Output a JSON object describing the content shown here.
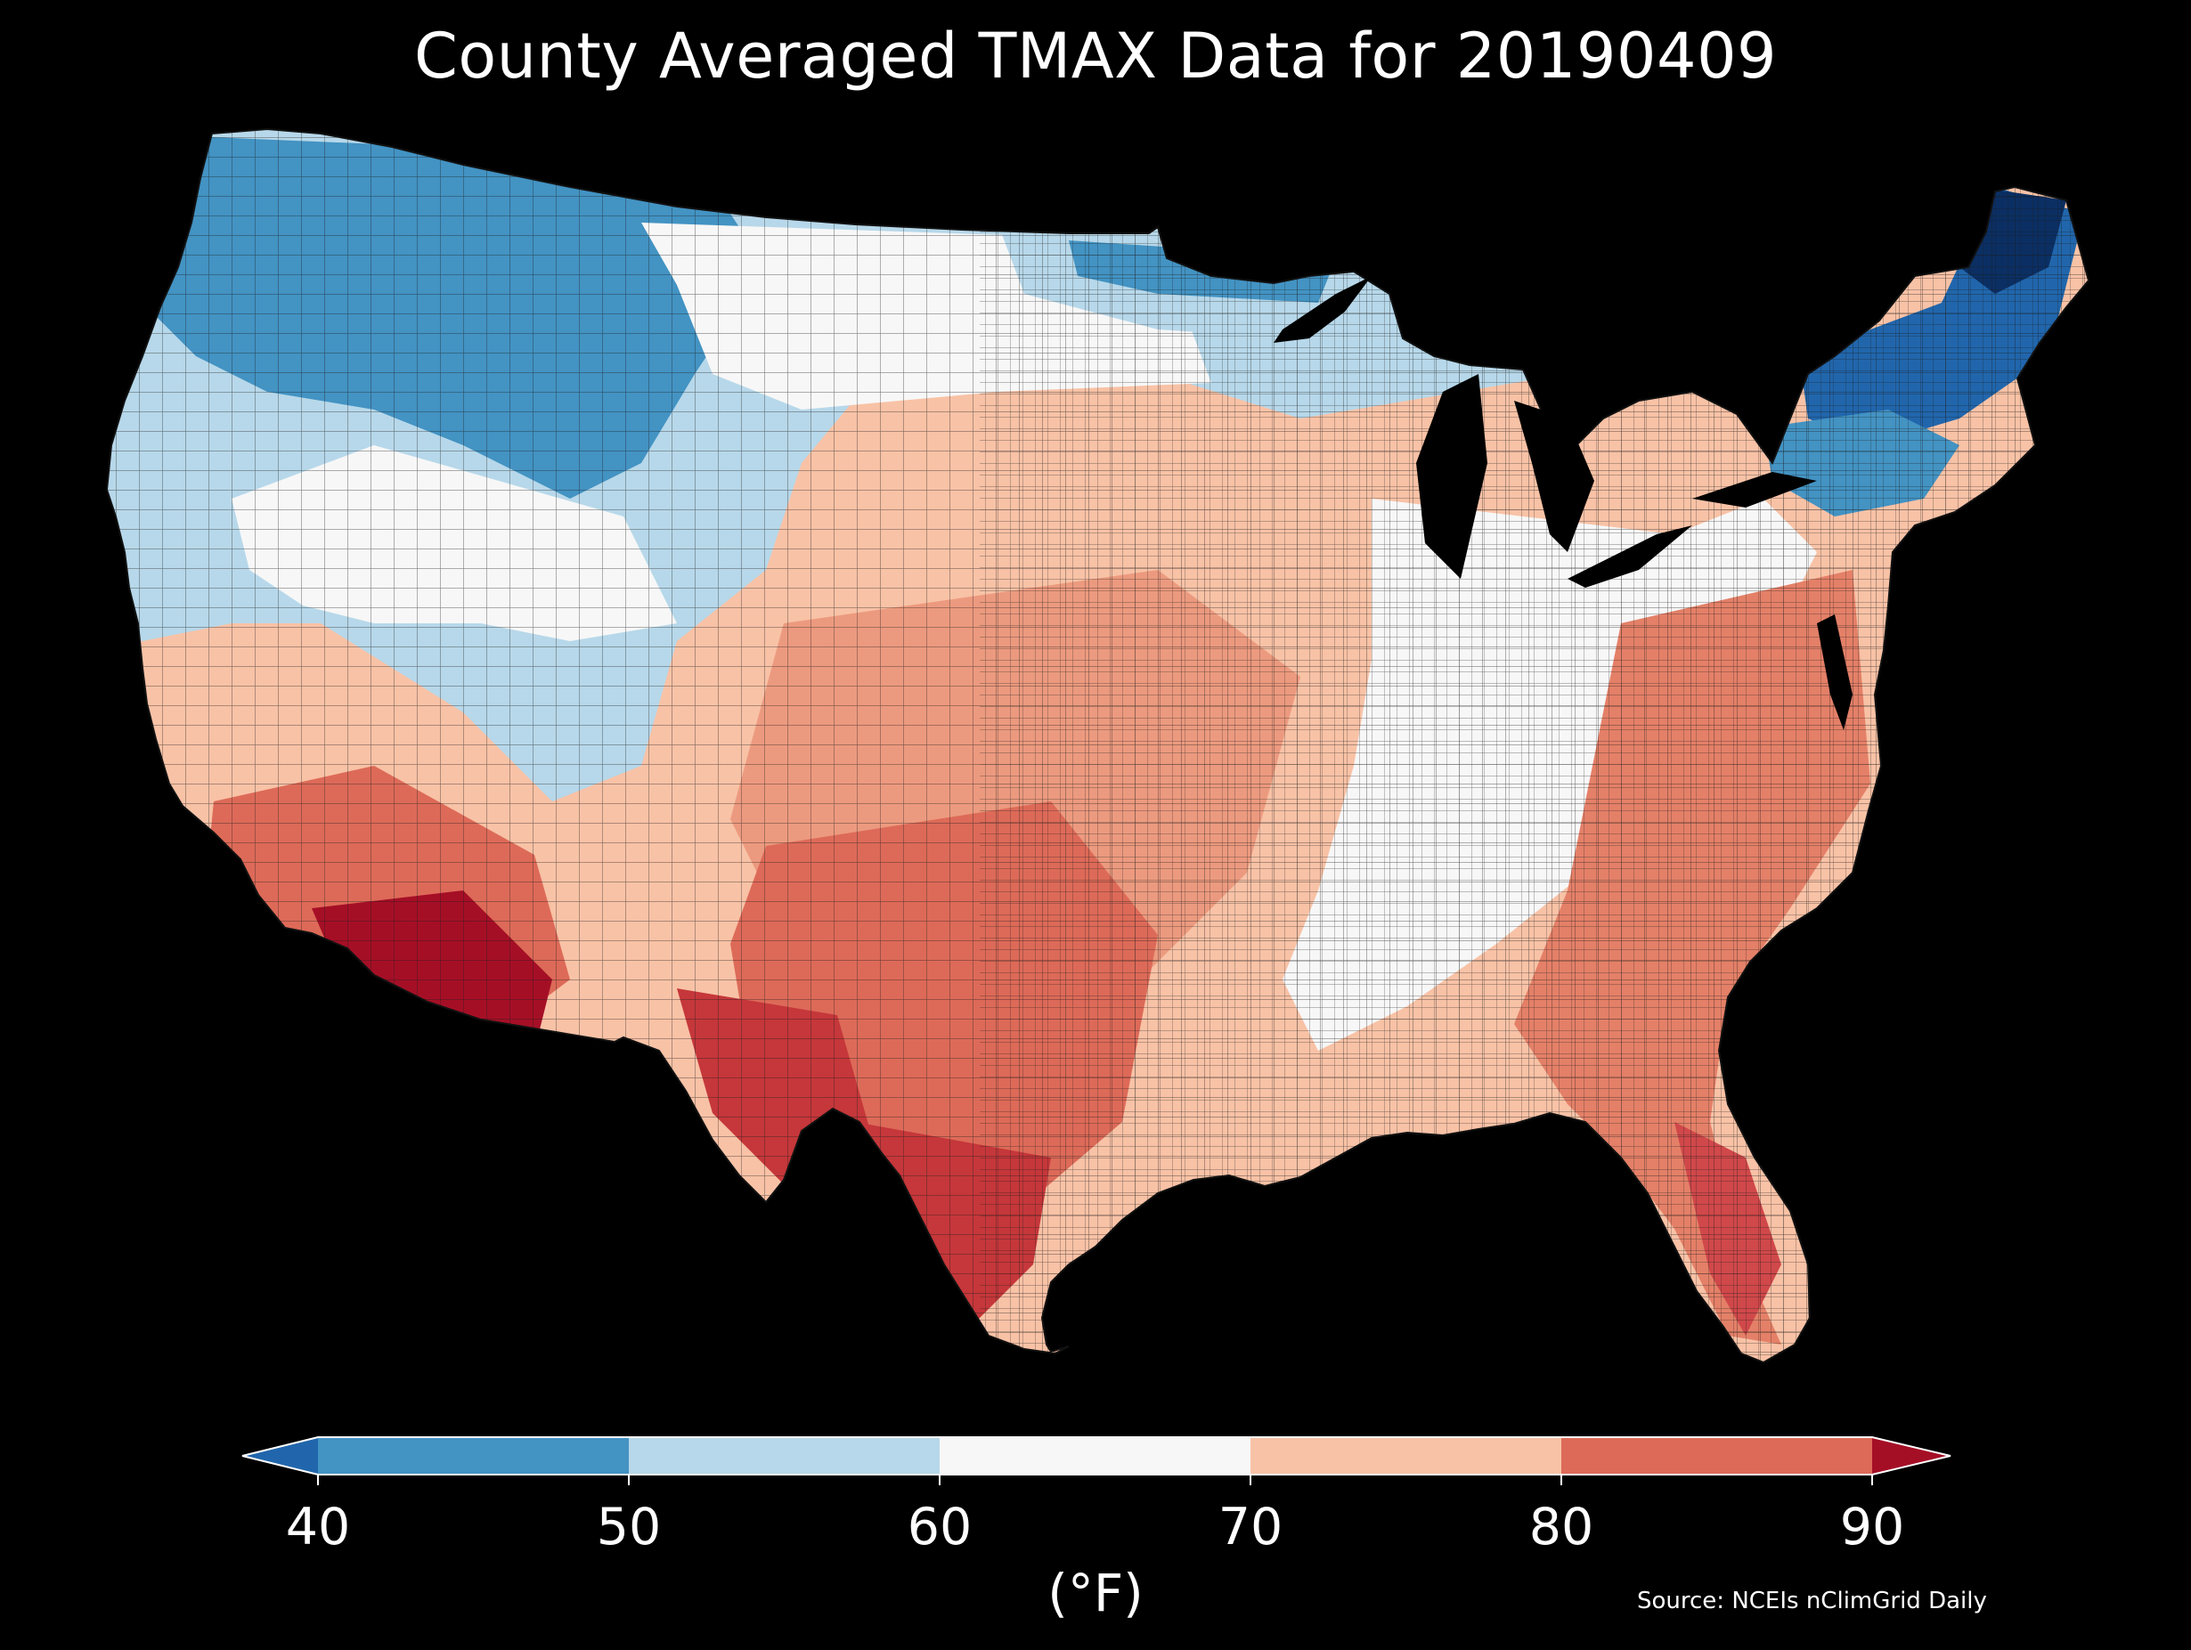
{
  "title": "County Averaged TMAX Data for 20190409",
  "colorbar": {
    "ticks": [
      "40",
      "50",
      "60",
      "70",
      "80",
      "90"
    ],
    "unit": "(°F)",
    "bins": [
      {
        "from": "<40",
        "color": "#2166ac"
      },
      {
        "from": "40",
        "to": "50",
        "color": "#4393c3"
      },
      {
        "from": "50",
        "to": "60",
        "color": "#b7d8ea"
      },
      {
        "from": "60",
        "to": "70",
        "color": "#f7f7f7"
      },
      {
        "from": "70",
        "to": "80",
        "color": "#f8c2a6"
      },
      {
        "from": "80",
        "to": "90",
        "color": "#dd6a58"
      },
      {
        "from": ">90",
        "color": "#a50f26"
      }
    ]
  },
  "source": "Source: NCEIs nClimGrid Daily",
  "colors": {
    "background": "#000000",
    "text": "#ffffff",
    "county_border": "#222222"
  }
}
